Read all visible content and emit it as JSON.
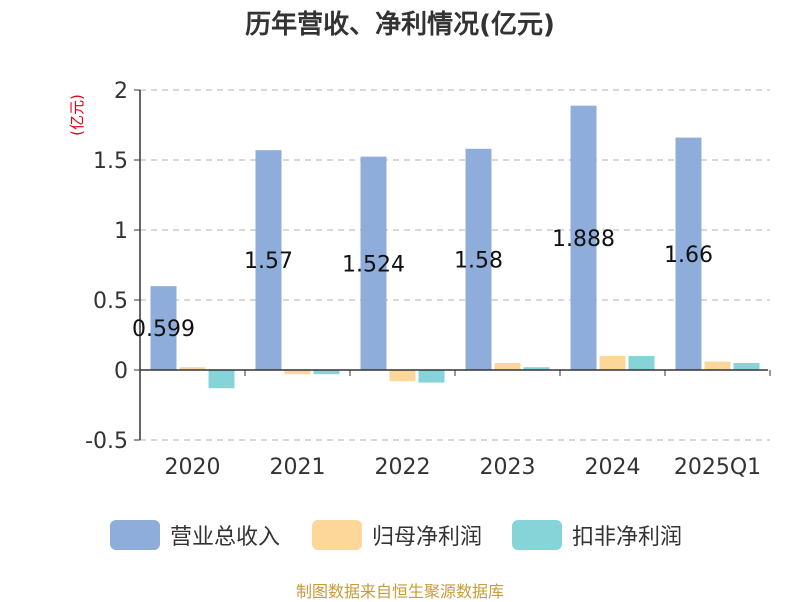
{
  "chart_data": {
    "type": "bar",
    "title": "历年营收、净利情况(亿元)",
    "ylabel": "(亿元)",
    "categories": [
      "2020",
      "2021",
      "2022",
      "2023",
      "2024",
      "2025Q1"
    ],
    "ylim": [
      -0.5,
      2
    ],
    "yticks": [
      -0.5,
      0,
      0.5,
      1,
      1.5,
      2
    ],
    "ytick_labels": [
      "-0.5",
      "0",
      "0.5",
      "1",
      "1.5",
      "2"
    ],
    "grid": true,
    "legend_position": "bottom",
    "series": [
      {
        "name": "营业总收入",
        "color": "#8eadda",
        "values": [
          0.599,
          1.57,
          1.524,
          1.58,
          1.888,
          1.66
        ],
        "data_labels": [
          "0.599",
          "1.57",
          "1.524",
          "1.58",
          "1.888",
          "1.66"
        ]
      },
      {
        "name": "归母净利润",
        "color": "#fdd699",
        "values": [
          0.02,
          -0.03,
          -0.08,
          0.05,
          0.1,
          0.06
        ]
      },
      {
        "name": "扣非净利润",
        "color": "#86d4d8",
        "values": [
          -0.13,
          -0.03,
          -0.09,
          0.02,
          0.1,
          0.05
        ]
      }
    ]
  },
  "source_text": "制图数据来自恒生聚源数据库",
  "colors": {
    "title": "#333333",
    "ylabel": "#e60012",
    "source": "#c89b3c",
    "axis": "#333333",
    "grid": "#cccccc"
  }
}
